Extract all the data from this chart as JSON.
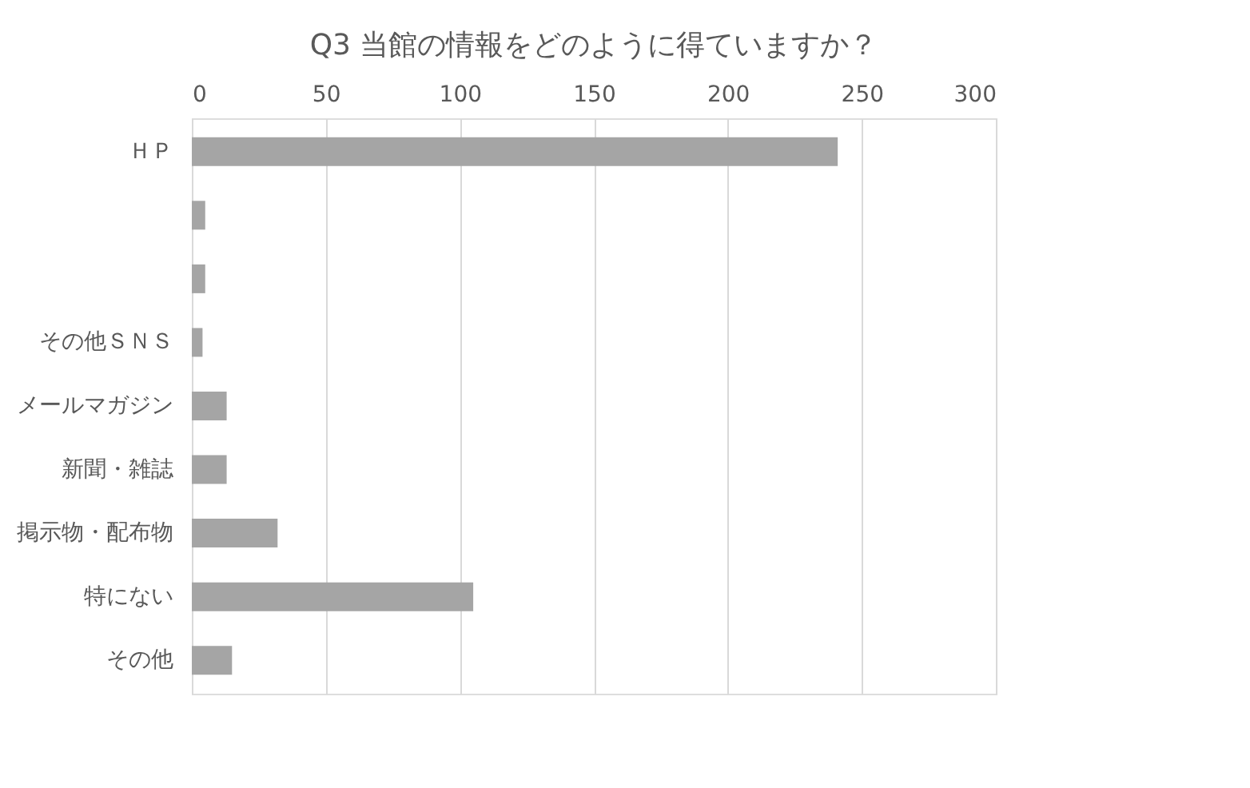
{
  "chart_data": {
    "type": "bar",
    "orientation": "horizontal",
    "title": "Q3 当館の情報をどのように得ていますか？",
    "categories": [
      "ＨＰ",
      null,
      null,
      "その他ＳＮＳ",
      "メールマガジン",
      "新聞・雑誌",
      "掲示物・配布物",
      "特にない",
      "その他"
    ],
    "values": [
      241,
      5,
      5,
      4,
      13,
      13,
      32,
      105,
      15
    ],
    "color": "#a5a5a5",
    "xlim": [
      0,
      300
    ],
    "xticks": [
      0,
      50,
      100,
      150,
      200,
      250,
      300
    ],
    "grid": "x"
  }
}
